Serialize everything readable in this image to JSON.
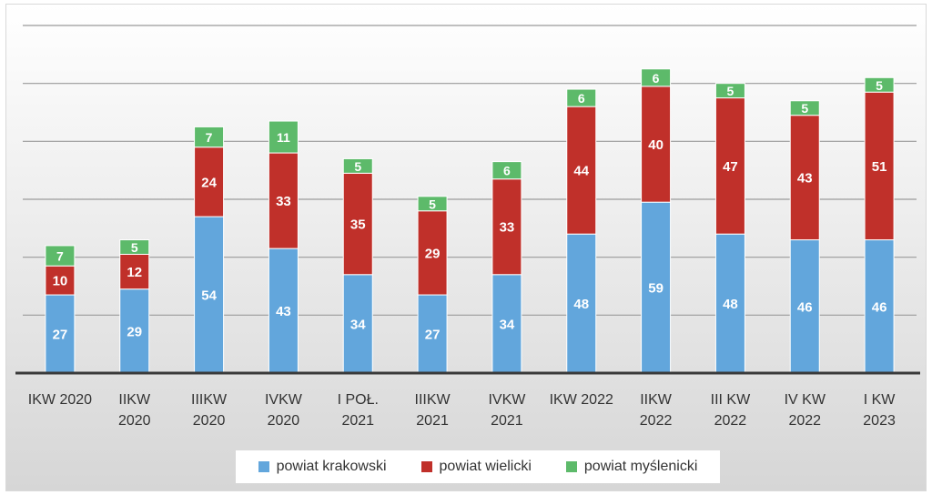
{
  "chart_data": {
    "type": "bar",
    "stacked": true,
    "title": "",
    "xlabel": "",
    "ylabel": "",
    "ylim": [
      0,
      120
    ],
    "grid": true,
    "legend_position": "bottom",
    "categories": [
      [
        "IKW 2020"
      ],
      [
        "IIKW",
        "2020"
      ],
      [
        "IIIKW",
        "2020"
      ],
      [
        "IVKW",
        "2020"
      ],
      [
        "I POŁ.",
        "2021"
      ],
      [
        "IIIKW",
        "2021"
      ],
      [
        "IVKW",
        "2021"
      ],
      [
        "IKW 2022"
      ],
      [
        "IIKW",
        "2022"
      ],
      [
        "III KW",
        "2022"
      ],
      [
        "IV KW",
        "2022"
      ],
      [
        "I KW",
        "2023"
      ]
    ],
    "series": [
      {
        "name": "powiat krakowski",
        "color": "#62a6dc",
        "values": [
          27,
          29,
          54,
          43,
          34,
          27,
          34,
          48,
          59,
          48,
          46,
          46
        ]
      },
      {
        "name": "powiat wielicki",
        "color": "#c0302a",
        "values": [
          10,
          12,
          24,
          33,
          35,
          29,
          33,
          44,
          40,
          47,
          43,
          51
        ]
      },
      {
        "name": "powiat myślenicki",
        "color": "#5dba6a",
        "values": [
          7,
          5,
          7,
          11,
          5,
          5,
          6,
          6,
          6,
          5,
          5,
          5
        ]
      }
    ]
  }
}
